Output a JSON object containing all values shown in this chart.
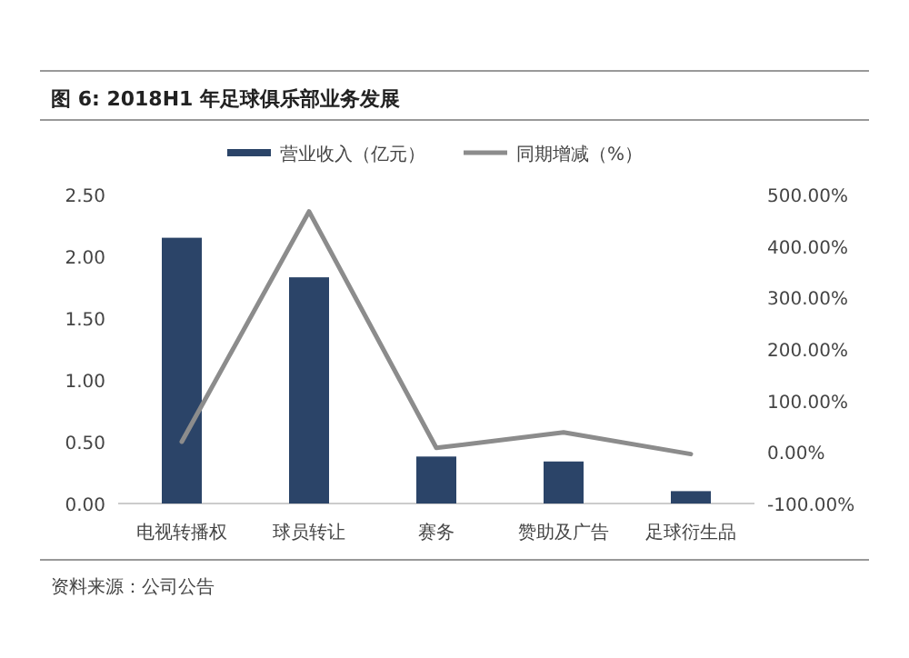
{
  "chart_data": {
    "type": "bar",
    "title": "图 6: 2018H1 年足球俱乐部业务发展",
    "categories": [
      "电视转播权",
      "球员转让",
      "赛务",
      "赞助及广告",
      "足球衍生品"
    ],
    "series": [
      {
        "name": "营业收入（亿元）",
        "color": "#2b4468",
        "values": [
          2.15,
          1.83,
          0.38,
          0.34,
          0.1
        ]
      },
      {
        "name": "同期增减（%）",
        "type": "line",
        "axis": "y2",
        "color": "#8c8c8c",
        "values": [
          20,
          467,
          8,
          38,
          -4
        ]
      }
    ],
    "ylim": [
      0,
      2.5
    ],
    "yticks": [
      {
        "value": 0,
        "label": "0.00"
      },
      {
        "value": 0.5,
        "label": "0.50"
      },
      {
        "value": 1,
        "label": "1.00"
      },
      {
        "value": 1.5,
        "label": "1.50"
      },
      {
        "value": 2,
        "label": "2.00"
      },
      {
        "value": 2.5,
        "label": "2.50"
      }
    ],
    "y2lim": [
      -100,
      500
    ],
    "y2ticks": [
      {
        "value": -100,
        "label": "-100.00%"
      },
      {
        "value": 0,
        "label": "0.00%"
      },
      {
        "value": 100,
        "label": "100.00%"
      },
      {
        "value": 200,
        "label": "200.00%"
      },
      {
        "value": 300,
        "label": "300.00%"
      },
      {
        "value": 400,
        "label": "400.00%"
      },
      {
        "value": 500,
        "label": "500.00%"
      }
    ],
    "legend": "top",
    "grid": false,
    "marker": "none",
    "annotations": [
      "资料来源：公司公告"
    ]
  }
}
